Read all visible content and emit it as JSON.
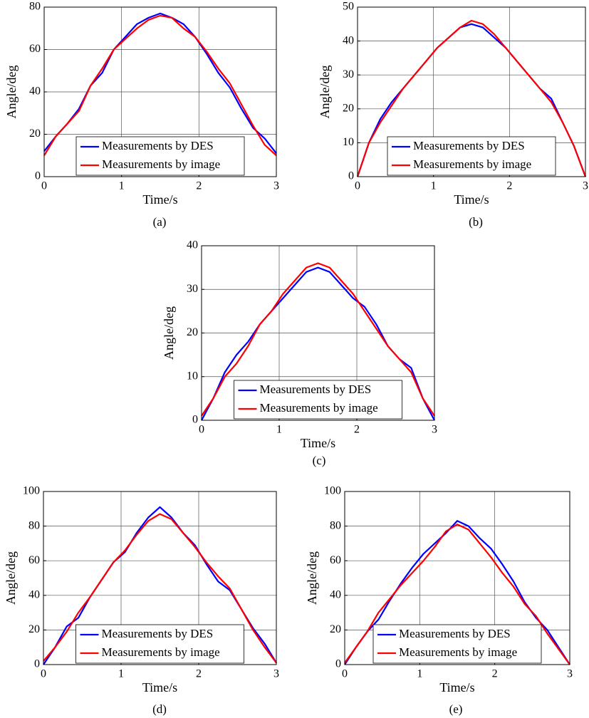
{
  "chart_data": [
    {
      "type": "line",
      "caption": "(a)",
      "xlabel": "Time/s",
      "ylabel": "Angle/deg",
      "grid": true,
      "legend": "lower center",
      "xlim": [
        0,
        3
      ],
      "xticks": [
        0,
        1,
        2,
        3
      ],
      "ylim": [
        0,
        80
      ],
      "yticks": [
        0,
        20,
        40,
        60,
        80
      ],
      "x": [
        0,
        0.15,
        0.3,
        0.45,
        0.6,
        0.75,
        0.9,
        1.05,
        1.2,
        1.35,
        1.5,
        1.65,
        1.8,
        1.95,
        2.1,
        2.25,
        2.4,
        2.55,
        2.7,
        2.85,
        3
      ],
      "series": [
        {
          "name": "Measurements by DES",
          "color": "#0000ff",
          "values": [
            12,
            19,
            25,
            32,
            43,
            49,
            60,
            66,
            72,
            75,
            77,
            75,
            72,
            66,
            58,
            49,
            42,
            32,
            23,
            18,
            11
          ]
        },
        {
          "name": "Measurements by image",
          "color": "#ff0000",
          "values": [
            10,
            19,
            25,
            31,
            43,
            51,
            60,
            65,
            70,
            74,
            76,
            75,
            70,
            66,
            59,
            51,
            44,
            34,
            24,
            15,
            10
          ]
        }
      ]
    },
    {
      "type": "line",
      "caption": "(b)",
      "xlabel": "Time/s",
      "ylabel": "Angle/deg",
      "grid": true,
      "legend": "lower center",
      "xlim": [
        0,
        3
      ],
      "xticks": [
        0,
        1,
        2,
        3
      ],
      "ylim": [
        0,
        50
      ],
      "yticks": [
        0,
        10,
        20,
        30,
        40,
        50
      ],
      "x": [
        0,
        0.15,
        0.3,
        0.45,
        0.6,
        0.75,
        0.9,
        1.05,
        1.2,
        1.35,
        1.5,
        1.65,
        1.8,
        1.95,
        2.1,
        2.25,
        2.4,
        2.55,
        2.7,
        2.85,
        3
      ],
      "series": [
        {
          "name": "Measurements by DES",
          "color": "#0000ff",
          "values": [
            0,
            10,
            17,
            22,
            26,
            30,
            34,
            38,
            41,
            44,
            45,
            44,
            41,
            38,
            34,
            30,
            26,
            23,
            16,
            9,
            0
          ]
        },
        {
          "name": "Measurements by image",
          "color": "#ff0000",
          "values": [
            0,
            10,
            16,
            21,
            26,
            30,
            34,
            38,
            41,
            44,
            46,
            45,
            42,
            38,
            34,
            30,
            26,
            22,
            16,
            9,
            0
          ]
        }
      ]
    },
    {
      "type": "line",
      "caption": "(c)",
      "xlabel": "Time/s",
      "ylabel": "Angle/deg",
      "grid": true,
      "legend": "lower center",
      "xlim": [
        0,
        3
      ],
      "xticks": [
        0,
        1,
        2,
        3
      ],
      "ylim": [
        0,
        40
      ],
      "yticks": [
        0,
        10,
        20,
        30,
        40
      ],
      "x": [
        0,
        0.15,
        0.3,
        0.45,
        0.6,
        0.75,
        0.9,
        1.05,
        1.2,
        1.35,
        1.5,
        1.65,
        1.8,
        1.95,
        2.1,
        2.25,
        2.4,
        2.55,
        2.7,
        2.85,
        3
      ],
      "series": [
        {
          "name": "Measurements by DES",
          "color": "#0000ff",
          "values": [
            0,
            5,
            11,
            15,
            18,
            22,
            25,
            28,
            31,
            34,
            35,
            34,
            31,
            28,
            26,
            22,
            17,
            14,
            12,
            5,
            0
          ]
        },
        {
          "name": "Measurements by image",
          "color": "#ff0000",
          "values": [
            1,
            5,
            10,
            13,
            17,
            22,
            25,
            29,
            32,
            35,
            36,
            35,
            32,
            29,
            25,
            21,
            17,
            14,
            11,
            5,
            1
          ]
        }
      ]
    },
    {
      "type": "line",
      "caption": "(d)",
      "xlabel": "Time/s",
      "ylabel": "Angle/deg",
      "grid": true,
      "legend": "lower center",
      "xlim": [
        0,
        3
      ],
      "xticks": [
        0,
        1,
        2,
        3
      ],
      "ylim": [
        0,
        100
      ],
      "yticks": [
        0,
        20,
        40,
        60,
        80,
        100
      ],
      "x": [
        0,
        0.15,
        0.3,
        0.45,
        0.6,
        0.75,
        0.9,
        1.05,
        1.2,
        1.35,
        1.5,
        1.65,
        1.8,
        1.95,
        2.1,
        2.25,
        2.4,
        2.55,
        2.7,
        2.85,
        3
      ],
      "series": [
        {
          "name": "Measurements by DES",
          "color": "#0000ff",
          "values": [
            0,
            10,
            22,
            27,
            39,
            49,
            59,
            65,
            76,
            85,
            91,
            85,
            76,
            69,
            58,
            48,
            43,
            32,
            21,
            12,
            1
          ]
        },
        {
          "name": "Measurements by image",
          "color": "#ff0000",
          "values": [
            2,
            10,
            19,
            30,
            39,
            49,
            59,
            66,
            75,
            83,
            87,
            84,
            76,
            68,
            59,
            51,
            44,
            32,
            20,
            10,
            1
          ]
        }
      ]
    },
    {
      "type": "line",
      "caption": "(e)",
      "xlabel": "Time/s",
      "ylabel": "Angle/deg",
      "grid": true,
      "legend": "lower center",
      "xlim": [
        0,
        3
      ],
      "xticks": [
        0,
        1,
        2,
        3
      ],
      "ylim": [
        0,
        100
      ],
      "yticks": [
        0,
        20,
        40,
        60,
        80,
        100
      ],
      "x": [
        0,
        0.15,
        0.3,
        0.45,
        0.6,
        0.75,
        0.9,
        1.05,
        1.2,
        1.35,
        1.5,
        1.65,
        1.8,
        1.95,
        2.1,
        2.25,
        2.4,
        2.55,
        2.7,
        2.85,
        3
      ],
      "series": [
        {
          "name": "Measurements by DES",
          "color": "#0000ff",
          "values": [
            0,
            10,
            19,
            26,
            37,
            47,
            56,
            64,
            70,
            76,
            83,
            80,
            73,
            67,
            58,
            48,
            36,
            27,
            20,
            10,
            0
          ]
        },
        {
          "name": "Measurements by image",
          "color": "#ff0000",
          "values": [
            1,
            10,
            19,
            30,
            38,
            46,
            53,
            60,
            68,
            77,
            81,
            78,
            70,
            62,
            53,
            45,
            35,
            28,
            18,
            9,
            0
          ]
        }
      ]
    }
  ]
}
